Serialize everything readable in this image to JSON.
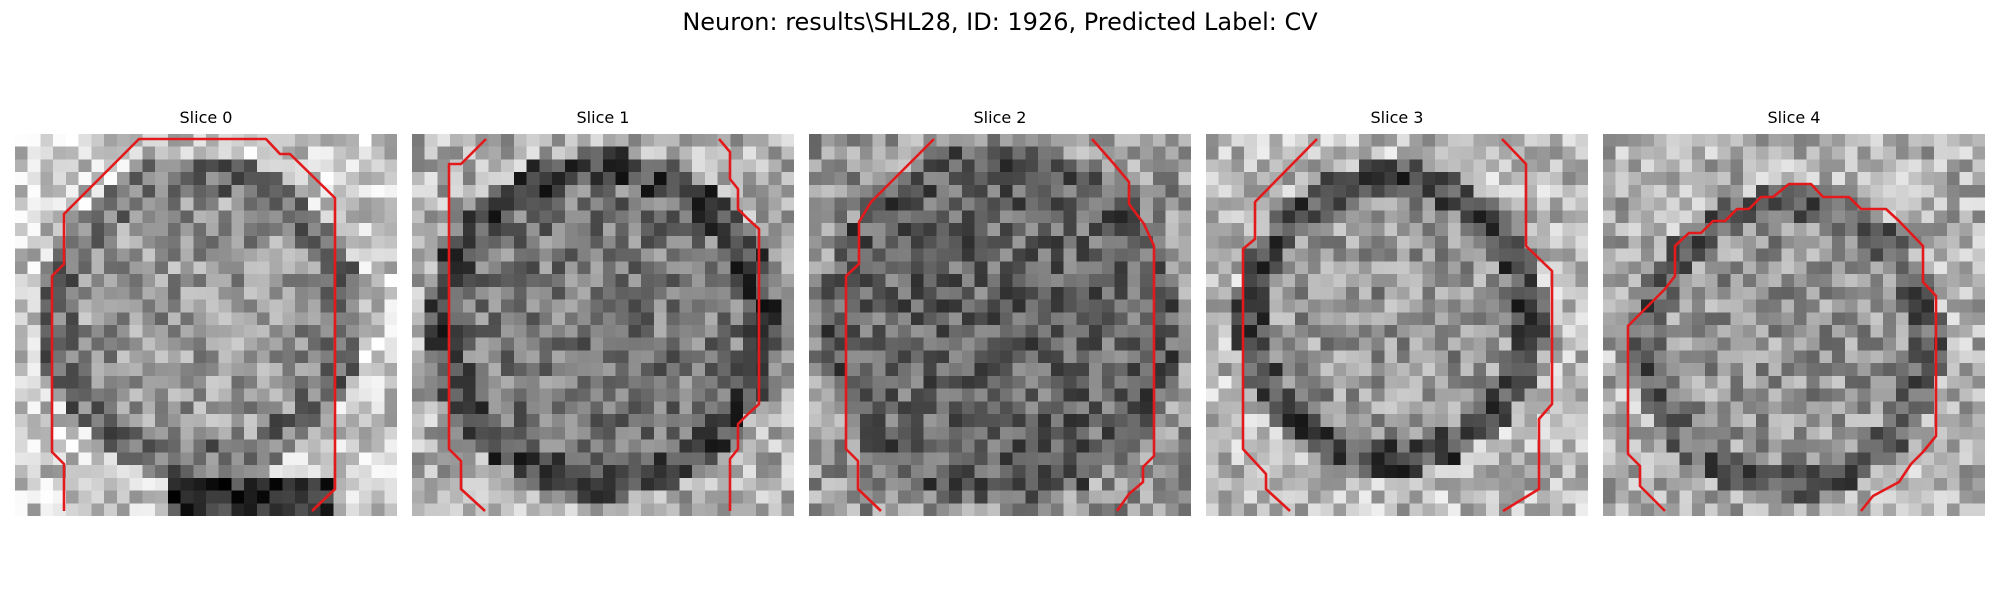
{
  "figure": {
    "title": "Neuron: results\\SHL28, ID: 1926, Predicted Label: CV"
  },
  "contour_color": "#e31a1c",
  "slices": [
    {
      "title": "Slice 0"
    },
    {
      "title": "Slice 1"
    },
    {
      "title": "Slice 2"
    },
    {
      "title": "Slice 3"
    },
    {
      "title": "Slice 4"
    }
  ]
}
